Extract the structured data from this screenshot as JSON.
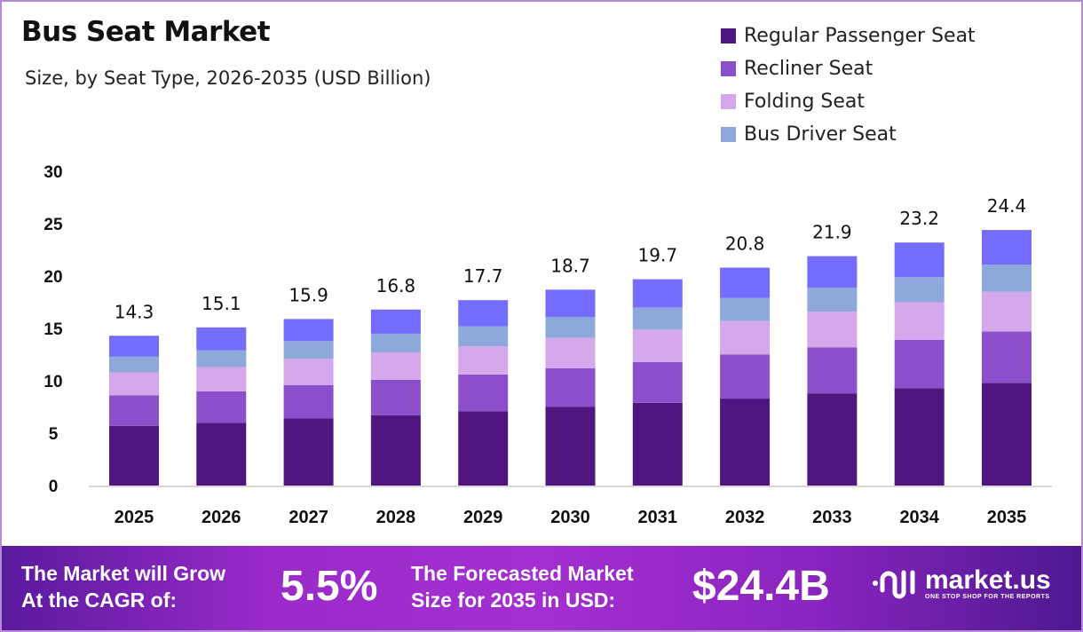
{
  "chart_data": {
    "type": "bar",
    "stacked": true,
    "title": "Bus Seat Market",
    "subtitle": "Size, by Seat Type, 2026-2035 (USD Billion)",
    "categories": [
      "2025",
      "2026",
      "2027",
      "2028",
      "2029",
      "2030",
      "2031",
      "2032",
      "2033",
      "2034",
      "2035"
    ],
    "totals": [
      "14.3",
      "15.1",
      "15.9",
      "16.8",
      "17.7",
      "18.7",
      "19.7",
      "20.8",
      "21.9",
      "23.2",
      "24.4"
    ],
    "series": [
      {
        "name": "Regular Passenger Seat",
        "color": "#4e167e",
        "values": [
          5.7,
          6.0,
          6.4,
          6.7,
          7.1,
          7.5,
          7.9,
          8.3,
          8.8,
          9.3,
          9.8
        ]
      },
      {
        "name": "Recliner Seat",
        "color": "#8b4fcb",
        "values": [
          2.9,
          3.0,
          3.2,
          3.4,
          3.5,
          3.7,
          3.9,
          4.2,
          4.4,
          4.6,
          4.9
        ]
      },
      {
        "name": "Folding Seat",
        "color": "#d4a8ea",
        "values": [
          2.2,
          2.3,
          2.5,
          2.6,
          2.7,
          2.9,
          3.1,
          3.2,
          3.4,
          3.6,
          3.8
        ]
      },
      {
        "name": "Bus Driver Seat",
        "color": "#8fa8dc",
        "values": [
          1.5,
          1.6,
          1.7,
          1.8,
          1.9,
          2.0,
          2.1,
          2.2,
          2.3,
          2.4,
          2.6
        ]
      },
      {
        "color": "#746cfc",
        "values": [
          2.0,
          2.2,
          2.1,
          2.3,
          2.5,
          2.6,
          2.7,
          2.9,
          3.0,
          3.3,
          3.3
        ]
      }
    ],
    "yticks": [
      "0",
      "5",
      "10",
      "15",
      "20",
      "25",
      "30"
    ],
    "ylim": [
      0,
      30
    ],
    "grid": false,
    "legend_position": "top-right"
  },
  "banner": {
    "cagr_label_line1": "The Market will Grow",
    "cagr_label_line2": "At the CAGR of:",
    "cagr_value": "5.5%",
    "forecast_label_line1": "The Forecasted Market",
    "forecast_label_line2": "Size for 2035 in USD:",
    "forecast_value": "$24.4B",
    "logo_name": "market.us",
    "logo_tagline": "ONE STOP SHOP FOR THE REPORTS"
  }
}
